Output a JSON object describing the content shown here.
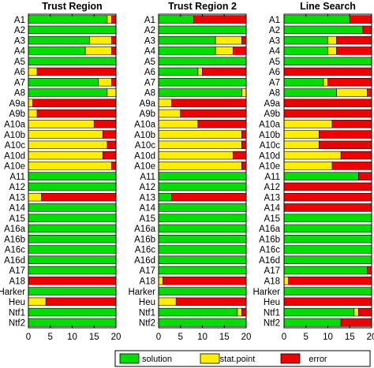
{
  "colors": {
    "solution": "#00dd00",
    "stat_point": "#ffee00",
    "error": "#ee0000",
    "frame": "#000000"
  },
  "legend": {
    "items": [
      {
        "key": "solution",
        "label": "solution"
      },
      {
        "key": "stat_point",
        "label": "stat.point"
      },
      {
        "key": "error",
        "label": "error"
      }
    ]
  },
  "chart_data": [
    {
      "type": "bar",
      "title": "Trust Region",
      "orientation": "horizontal",
      "stacked": true,
      "xlim": [
        0,
        20
      ],
      "xticks": [
        0,
        5,
        10,
        15,
        20
      ],
      "categories": [
        "A1",
        "A2",
        "A3",
        "A4",
        "A5",
        "A6",
        "A7",
        "A8",
        "A9a",
        "A9b",
        "A10a",
        "A10b",
        "A10c",
        "A10d",
        "A10e",
        "A11",
        "A12",
        "A13",
        "A14",
        "A15",
        "A16a",
        "A16b",
        "A16c",
        "A16d",
        "A17",
        "A18",
        "Harker",
        "Heu",
        "Ntf1",
        "Ntf2"
      ],
      "series": [
        {
          "name": "solution",
          "values": [
            18,
            20,
            14,
            13,
            20,
            0,
            16,
            18,
            0,
            0,
            0,
            0,
            0,
            0,
            0,
            20,
            20,
            0,
            20,
            20,
            20,
            20,
            20,
            20,
            20,
            0,
            20,
            0,
            20,
            20
          ]
        },
        {
          "name": "stat.point",
          "values": [
            1,
            0,
            5,
            6,
            0,
            2,
            3,
            2,
            1,
            2,
            15,
            17,
            18,
            17,
            19,
            0,
            0,
            3,
            0,
            0,
            0,
            0,
            0,
            0,
            0,
            0,
            0,
            4,
            0,
            0
          ]
        },
        {
          "name": "error",
          "values": [
            1,
            0,
            1,
            1,
            0,
            18,
            1,
            0,
            19,
            18,
            5,
            3,
            2,
            3,
            1,
            0,
            0,
            17,
            0,
            0,
            0,
            0,
            0,
            0,
            0,
            20,
            0,
            16,
            0,
            0
          ]
        }
      ]
    },
    {
      "type": "bar",
      "title": "Trust Region 2",
      "orientation": "horizontal",
      "stacked": true,
      "xlim": [
        0,
        20
      ],
      "xticks": [
        0,
        5,
        10,
        15,
        20
      ],
      "categories": [
        "A1",
        "A2",
        "A3",
        "A4",
        "A5",
        "A6",
        "A7",
        "A8",
        "A9a",
        "A9b",
        "A10a",
        "A10b",
        "A10c",
        "A10d",
        "A10e",
        "A11",
        "A12",
        "A13",
        "A14",
        "A15",
        "A16a",
        "A16b",
        "A16c",
        "A16d",
        "A17",
        "A18",
        "Harker",
        "Heu",
        "Ntf1",
        "Ntf2"
      ],
      "series": [
        {
          "name": "solution",
          "values": [
            8,
            20,
            13,
            13,
            20,
            9,
            20,
            19,
            0,
            0,
            0,
            0,
            0,
            0,
            0,
            20,
            20,
            3,
            20,
            20,
            20,
            20,
            20,
            20,
            20,
            0,
            20,
            0,
            18,
            20
          ]
        },
        {
          "name": "stat.point",
          "values": [
            0,
            0,
            6,
            4,
            0,
            1,
            0,
            1,
            3,
            5,
            9,
            19,
            19,
            17,
            19,
            0,
            0,
            0,
            0,
            0,
            0,
            0,
            0,
            0,
            0,
            1,
            0,
            4,
            1,
            0
          ]
        },
        {
          "name": "error",
          "values": [
            12,
            0,
            1,
            3,
            0,
            10,
            0,
            0,
            17,
            15,
            11,
            1,
            1,
            3,
            1,
            0,
            0,
            17,
            0,
            0,
            0,
            0,
            0,
            0,
            0,
            19,
            0,
            16,
            1,
            0
          ]
        }
      ]
    },
    {
      "type": "bar",
      "title": "Line Search",
      "orientation": "horizontal",
      "stacked": true,
      "xlim": [
        0,
        20
      ],
      "xticks": [
        0,
        5,
        10,
        15,
        20
      ],
      "categories": [
        "A1",
        "A2",
        "A3",
        "A4",
        "A5",
        "A6",
        "A7",
        "A8",
        "A9a",
        "A9b",
        "A10a",
        "A10b",
        "A10c",
        "A10d",
        "A10e",
        "A11",
        "A12",
        "A13",
        "A14",
        "A15",
        "A16a",
        "A16b",
        "A16c",
        "A16d",
        "A17",
        "A18",
        "Harker",
        "Heu",
        "Ntf1",
        "Ntf2"
      ],
      "series": [
        {
          "name": "solution",
          "values": [
            15,
            18,
            10,
            10,
            20,
            0,
            9,
            12,
            0,
            0,
            0,
            0,
            0,
            0,
            0,
            17,
            0,
            0,
            0,
            20,
            20,
            20,
            20,
            20,
            19,
            0,
            20,
            0,
            16,
            13
          ]
        },
        {
          "name": "stat.point",
          "values": [
            0,
            0,
            2,
            2,
            0,
            0,
            1,
            7,
            0,
            0,
            11,
            8,
            8,
            13,
            11,
            0,
            0,
            0,
            0,
            0,
            0,
            0,
            0,
            0,
            0,
            1,
            0,
            0,
            1,
            0
          ]
        },
        {
          "name": "error",
          "values": [
            5,
            2,
            8,
            8,
            0,
            20,
            10,
            1,
            20,
            20,
            9,
            12,
            12,
            7,
            9,
            3,
            20,
            20,
            20,
            0,
            0,
            0,
            0,
            0,
            1,
            19,
            0,
            20,
            3,
            7
          ]
        }
      ]
    }
  ]
}
